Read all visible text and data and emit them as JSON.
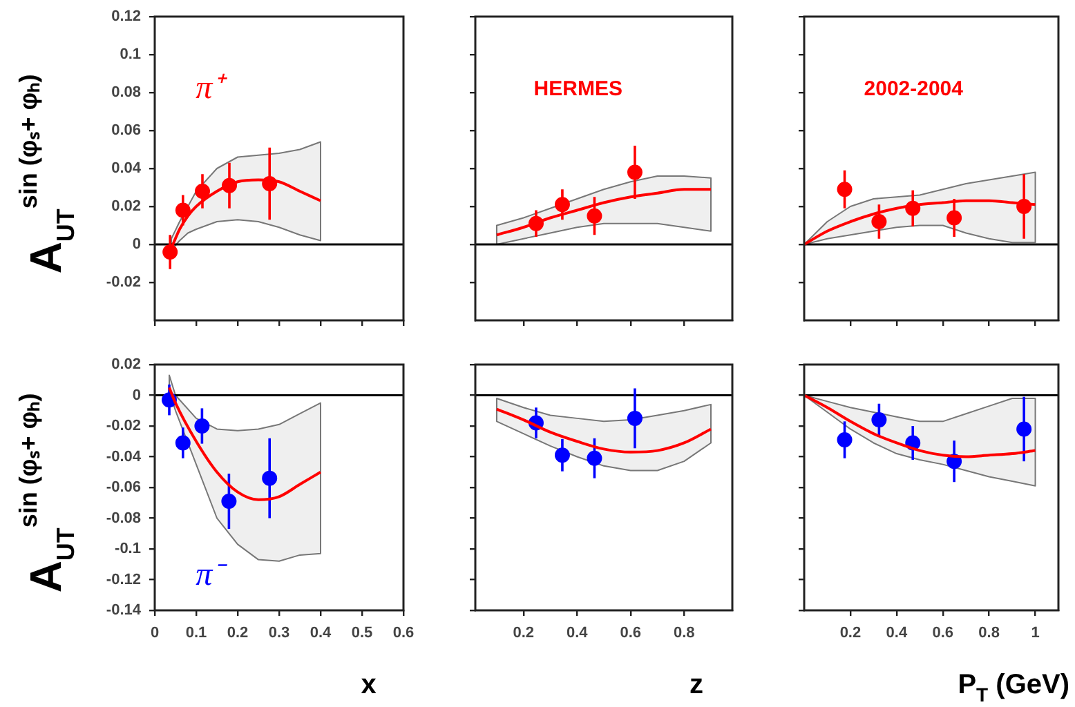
{
  "chart_data": [
    {
      "type": "scatter",
      "ylabel": "A$_{UT}$$^{sin (φₛ+ φₕ)}$",
      "annotations": [
        "π⁺"
      ],
      "xlim": [
        0,
        0.6
      ],
      "xticks": [
        0,
        0.1,
        0.2,
        0.3,
        0.4,
        0.5,
        0.6
      ],
      "ylim": [
        -0.04,
        0.12
      ],
      "yticks": [
        -0.02,
        0,
        0.02,
        0.04,
        0.06,
        0.08,
        0.1,
        0.12
      ],
      "tick_labels": "y",
      "ref_lines": [
        {
          "axis": "y",
          "value": 0
        }
      ],
      "series": [
        {
          "type": "line",
          "color": "#ff0000",
          "x": [
            0.04,
            0.06,
            0.08,
            0.1,
            0.15,
            0.2,
            0.25,
            0.3,
            0.35,
            0.4
          ],
          "values": [
            -0.002,
            0.008,
            0.015,
            0.02,
            0.028,
            0.033,
            0.034,
            0.033,
            0.028,
            0.023
          ],
          "lower": [
            -0.003,
            0.002,
            0.006,
            0.008,
            0.012,
            0.013,
            0.012,
            0.009,
            0.005,
            0.002
          ],
          "upper": [
            0.003,
            0.012,
            0.02,
            0.028,
            0.04,
            0.046,
            0.047,
            0.048,
            0.05,
            0.054
          ]
        },
        {
          "type": "scatter",
          "color": "#ff0000",
          "x": [
            0.037,
            0.068,
            0.115,
            0.18,
            0.277
          ],
          "values": [
            -0.004,
            0.018,
            0.028,
            0.031,
            0.032
          ],
          "marker": "circle",
          "errors": [
            0.009,
            0.008,
            0.009,
            0.012,
            0.019
          ]
        }
      ]
    },
    {
      "type": "scatter",
      "annotations": [
        "HERMES"
      ],
      "xlim": [
        0.02,
        0.98
      ],
      "xticks": [
        0.2,
        0.4,
        0.6,
        0.8
      ],
      "ylim": [
        -0.04,
        0.12
      ],
      "yticks": [
        -0.02,
        0,
        0.02,
        0.04,
        0.06,
        0.08,
        0.1,
        0.12
      ],
      "tick_labels": false,
      "ref_lines": [
        {
          "axis": "y",
          "value": 0
        }
      ],
      "series": [
        {
          "type": "line",
          "color": "#ff0000",
          "x": [
            0.1,
            0.2,
            0.3,
            0.4,
            0.5,
            0.6,
            0.7,
            0.8,
            0.9
          ],
          "values": [
            0.005,
            0.009,
            0.014,
            0.018,
            0.022,
            0.025,
            0.027,
            0.029,
            0.029
          ],
          "lower": [
            0,
            0.003,
            0.006,
            0.009,
            0.011,
            0.011,
            0.011,
            0.009,
            0.007
          ],
          "upper": [
            0.01,
            0.014,
            0.019,
            0.024,
            0.029,
            0.033,
            0.036,
            0.036,
            0.035
          ]
        },
        {
          "type": "scatter",
          "color": "#ff0000",
          "x": [
            0.247,
            0.345,
            0.465,
            0.616
          ],
          "values": [
            0.011,
            0.021,
            0.015,
            0.038
          ],
          "marker": "circle",
          "errors": [
            0.007,
            0.008,
            0.01,
            0.014
          ]
        }
      ]
    },
    {
      "type": "scatter",
      "annotations": [
        "2002-2004"
      ],
      "xlim": [
        0,
        1.1
      ],
      "xticks": [
        0.2,
        0.4,
        0.6,
        0.8,
        1
      ],
      "ylim": [
        -0.04,
        0.12
      ],
      "yticks": [
        -0.02,
        0,
        0.02,
        0.04,
        0.06,
        0.08,
        0.1,
        0.12
      ],
      "tick_labels": false,
      "ref_lines": [
        {
          "axis": "y",
          "value": 0
        }
      ],
      "series": [
        {
          "type": "line",
          "color": "#ff0000",
          "x": [
            0,
            0.1,
            0.2,
            0.3,
            0.4,
            0.5,
            0.6,
            0.7,
            0.8,
            0.9,
            1
          ],
          "values": [
            0,
            0.007,
            0.012,
            0.016,
            0.019,
            0.021,
            0.022,
            0.023,
            0.023,
            0.022,
            0.021
          ],
          "lower": [
            0,
            0.003,
            0.005,
            0.007,
            0.009,
            0.01,
            0.01,
            0.006,
            0.003,
            0.001,
            0.001
          ],
          "upper": [
            0,
            0.012,
            0.02,
            0.024,
            0.025,
            0.026,
            0.029,
            0.032,
            0.034,
            0.036,
            0.038
          ]
        },
        {
          "type": "scatter",
          "color": "#ff0000",
          "x": [
            0.175,
            0.324,
            0.47,
            0.649,
            0.951
          ],
          "values": [
            0.029,
            0.012,
            0.019,
            0.014,
            0.02
          ],
          "marker": "circle",
          "errors": [
            0.01,
            0.009,
            0.0095,
            0.01,
            0.017
          ]
        }
      ]
    },
    {
      "type": "scatter",
      "xlabel": "x",
      "ylabel": "A$_{UT}$$^{sin (φₛ+ φₕ)}$",
      "annotations": [
        "π⁻"
      ],
      "xlim": [
        0,
        0.6
      ],
      "xticks": [
        0,
        0.1,
        0.2,
        0.3,
        0.4,
        0.5,
        0.6
      ],
      "ylim": [
        -0.14,
        0.02
      ],
      "yticks": [
        -0.14,
        -0.12,
        -0.1,
        -0.08,
        -0.06,
        -0.04,
        -0.02,
        0,
        0.02
      ],
      "ref_lines": [
        {
          "axis": "y",
          "value": 0
        }
      ],
      "series": [
        {
          "type": "line",
          "color": "#ff0000",
          "x": [
            0.035,
            0.05,
            0.1,
            0.15,
            0.2,
            0.25,
            0.3,
            0.35,
            0.4
          ],
          "values": [
            0.005,
            -0.005,
            -0.03,
            -0.05,
            -0.063,
            -0.068,
            -0.066,
            -0.058,
            -0.05
          ],
          "lower": [
            0.003,
            -0.01,
            -0.045,
            -0.08,
            -0.097,
            -0.107,
            -0.108,
            -0.104,
            -0.103
          ],
          "upper": [
            0.013,
            0,
            -0.015,
            -0.022,
            -0.023,
            -0.022,
            -0.019,
            -0.012,
            -0.005
          ]
        },
        {
          "type": "scatter",
          "color": "#0000ff",
          "x": [
            0.035,
            0.068,
            0.114,
            0.179,
            0.277
          ],
          "values": [
            -0.003,
            -0.031,
            -0.02,
            -0.069,
            -0.054
          ],
          "marker": "circle",
          "errors": [
            0.01,
            0.01,
            0.0115,
            0.018,
            0.026
          ]
        }
      ]
    },
    {
      "type": "scatter",
      "xlabel": "z",
      "xlim": [
        0.02,
        0.98
      ],
      "xticks": [
        0.2,
        0.4,
        0.6,
        0.8
      ],
      "ylim": [
        -0.14,
        0.02
      ],
      "yticks": [
        -0.14,
        -0.12,
        -0.1,
        -0.08,
        -0.06,
        -0.04,
        -0.02,
        0,
        0.02
      ],
      "tick_labels": "x",
      "ref_lines": [
        {
          "axis": "y",
          "value": 0
        }
      ],
      "series": [
        {
          "type": "line",
          "color": "#ff0000",
          "x": [
            0.1,
            0.2,
            0.3,
            0.4,
            0.5,
            0.6,
            0.7,
            0.8,
            0.9
          ],
          "values": [
            -0.009,
            -0.016,
            -0.024,
            -0.03,
            -0.035,
            -0.037,
            -0.036,
            -0.031,
            -0.022
          ],
          "lower": [
            -0.017,
            -0.025,
            -0.033,
            -0.04,
            -0.046,
            -0.049,
            -0.049,
            -0.043,
            -0.031
          ],
          "upper": [
            -0.002,
            -0.008,
            -0.013,
            -0.015,
            -0.017,
            -0.016,
            -0.013,
            -0.01,
            -0.006
          ]
        },
        {
          "type": "scatter",
          "color": "#0000ff",
          "x": [
            0.247,
            0.345,
            0.465,
            0.616
          ],
          "values": [
            -0.018,
            -0.039,
            -0.041,
            -0.015
          ],
          "marker": "circle",
          "errors": [
            0.01,
            0.0105,
            0.013,
            0.0195
          ]
        }
      ]
    },
    {
      "type": "scatter",
      "xlabel": "P$_{T}$ (GeV)",
      "xlim": [
        0,
        1.1
      ],
      "xticks": [
        0.2,
        0.4,
        0.6,
        0.8,
        1
      ],
      "ylim": [
        -0.14,
        0.02
      ],
      "yticks": [
        -0.14,
        -0.12,
        -0.1,
        -0.08,
        -0.06,
        -0.04,
        -0.02,
        0,
        0.02
      ],
      "tick_labels": "x",
      "ref_lines": [
        {
          "axis": "y",
          "value": 0
        }
      ],
      "series": [
        {
          "type": "line",
          "color": "#ff0000",
          "x": [
            0,
            0.1,
            0.2,
            0.3,
            0.4,
            0.5,
            0.6,
            0.7,
            0.8,
            0.9,
            1
          ],
          "values": [
            0,
            -0.008,
            -0.017,
            -0.025,
            -0.031,
            -0.036,
            -0.039,
            -0.04,
            -0.039,
            -0.038,
            -0.036
          ],
          "lower": [
            0,
            -0.011,
            -0.022,
            -0.031,
            -0.038,
            -0.042,
            -0.045,
            -0.049,
            -0.053,
            -0.056,
            -0.059
          ],
          "upper": [
            0,
            -0.004,
            -0.008,
            -0.011,
            -0.014,
            -0.017,
            -0.017,
            -0.012,
            -0.007,
            -0.002,
            -0.002
          ]
        },
        {
          "type": "scatter",
          "color": "#0000ff",
          "x": [
            0.175,
            0.324,
            0.47,
            0.649,
            0.951
          ],
          "values": [
            -0.029,
            -0.016,
            -0.031,
            -0.043,
            -0.022
          ],
          "marker": "circle",
          "errors": [
            0.012,
            0.0105,
            0.011,
            0.0135,
            0.021
          ]
        }
      ]
    }
  ]
}
